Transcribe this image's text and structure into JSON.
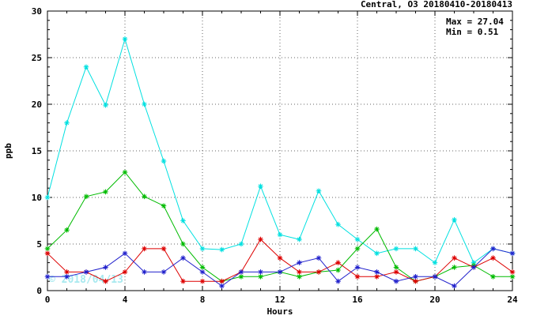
{
  "title": "Central, O3 20180410-20180413",
  "stats": {
    "max_label": "Max = 27.04",
    "min_label": "Min =  0.51"
  },
  "watermark": "© 2018/04/13",
  "chart_data": {
    "type": "line",
    "title": "Central, O3 20180410-20180413",
    "xlabel": "Hours",
    "ylabel": "ppb",
    "xlim": [
      0,
      24
    ],
    "ylim": [
      0,
      30
    ],
    "x_major_ticks": [
      0,
      4,
      8,
      12,
      16,
      20,
      24
    ],
    "y_major_ticks": [
      0,
      5,
      10,
      15,
      20,
      25,
      30
    ],
    "x_minor_step": 1,
    "y_minor_step": 1,
    "grid": "dotted",
    "legend_position": "none",
    "max": 27.04,
    "min": 0.51,
    "x": [
      0,
      1,
      2,
      3,
      4,
      5,
      6,
      7,
      8,
      9,
      10,
      11,
      12,
      13,
      14,
      15,
      16,
      17,
      18,
      19,
      20,
      21,
      22,
      23,
      24
    ],
    "series": [
      {
        "name": "series-1-cyan",
        "color": "#00e0e0",
        "values": [
          10.0,
          18.0,
          24.0,
          19.9,
          27.0,
          20.0,
          13.9,
          7.5,
          4.5,
          4.4,
          5.0,
          11.2,
          6.0,
          5.5,
          10.7,
          7.1,
          5.5,
          4.0,
          4.5,
          4.5,
          3.0,
          7.6,
          3.0,
          4.5,
          4.0
        ]
      },
      {
        "name": "series-2-green",
        "color": "#00bb00",
        "values": [
          4.5,
          6.5,
          10.1,
          10.6,
          12.7,
          10.1,
          9.1,
          5.0,
          2.5,
          1.0,
          1.5,
          1.5,
          2.0,
          1.5,
          2.0,
          2.2,
          4.5,
          6.6,
          2.5,
          1.0,
          1.5,
          2.5,
          2.7,
          1.5,
          1.5
        ]
      },
      {
        "name": "series-3-red",
        "color": "#dd0000",
        "values": [
          4.0,
          2.0,
          2.0,
          1.0,
          2.0,
          4.5,
          4.5,
          1.0,
          1.0,
          1.0,
          2.0,
          5.5,
          3.5,
          2.0,
          2.0,
          3.0,
          1.5,
          1.5,
          2.0,
          1.0,
          1.5,
          3.5,
          2.5,
          3.5,
          2.0
        ]
      },
      {
        "name": "series-4-blue",
        "color": "#2222cc",
        "values": [
          1.5,
          1.5,
          2.0,
          2.5,
          4.0,
          2.0,
          2.0,
          3.5,
          2.0,
          0.5,
          2.0,
          2.0,
          2.0,
          3.0,
          3.5,
          1.0,
          2.5,
          2.0,
          1.0,
          1.5,
          1.5,
          0.5,
          2.5,
          4.5,
          4.0
        ]
      }
    ]
  }
}
